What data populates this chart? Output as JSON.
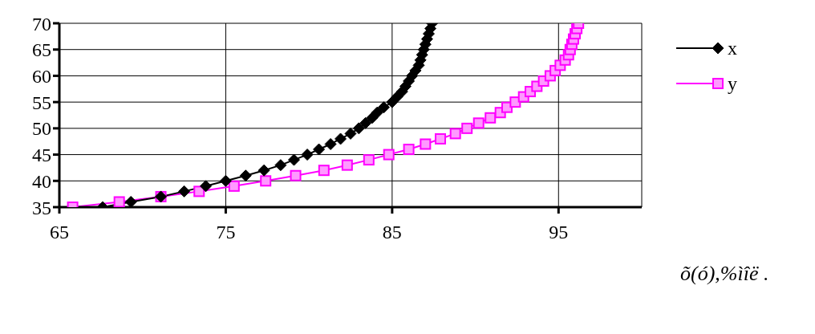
{
  "chart_data": {
    "type": "line",
    "xlabel": "õ(ó),%ìîë .",
    "xlim": [
      65,
      100
    ],
    "xticks": [
      65,
      75,
      85,
      95
    ],
    "ylim": [
      35,
      70
    ],
    "yticks": [
      35,
      40,
      45,
      50,
      55,
      60,
      65,
      70
    ],
    "grid": true,
    "legend": "top right",
    "series": [
      {
        "name": "x",
        "color": "#000000",
        "marker": "diamond",
        "x": [
          67.6,
          69.3,
          71.1,
          72.5,
          73.8,
          75.0,
          76.2,
          77.3,
          78.3,
          79.1,
          79.9,
          80.6,
          81.3,
          81.9,
          82.5,
          83.0,
          83.4,
          83.8,
          84.1,
          84.5,
          85.0,
          85.3,
          85.6,
          85.8,
          86.0,
          86.2,
          86.4,
          86.6,
          86.7,
          86.8,
          86.9,
          87.0,
          87.1,
          87.2,
          87.3,
          87.4
        ],
        "values": [
          35,
          36,
          37,
          38,
          39,
          40,
          41,
          42,
          43,
          44,
          45,
          46,
          47,
          48,
          49,
          50,
          51,
          52,
          53,
          54,
          55,
          56,
          57,
          58,
          59,
          60,
          61,
          62,
          63,
          64,
          65,
          66,
          67,
          68,
          69,
          70
        ]
      },
      {
        "name": "y",
        "color": "#ff00ff",
        "marker": "square",
        "x": [
          65.8,
          68.6,
          71.1,
          73.4,
          75.5,
          77.4,
          79.2,
          80.9,
          82.3,
          83.6,
          84.8,
          86.0,
          87.0,
          87.9,
          88.8,
          89.5,
          90.2,
          90.9,
          91.5,
          91.9,
          92.4,
          92.9,
          93.3,
          93.7,
          94.1,
          94.5,
          94.8,
          95.1,
          95.4,
          95.6,
          95.7,
          95.8,
          95.9,
          96.0,
          96.1,
          96.2
        ],
        "values": [
          35,
          36,
          37,
          38,
          39,
          40,
          41,
          42,
          43,
          44,
          45,
          46,
          47,
          48,
          49,
          50,
          51,
          52,
          53,
          54,
          55,
          56,
          57,
          58,
          59,
          60,
          61,
          62,
          63,
          64,
          65,
          66,
          67,
          68,
          69,
          70
        ]
      }
    ]
  }
}
